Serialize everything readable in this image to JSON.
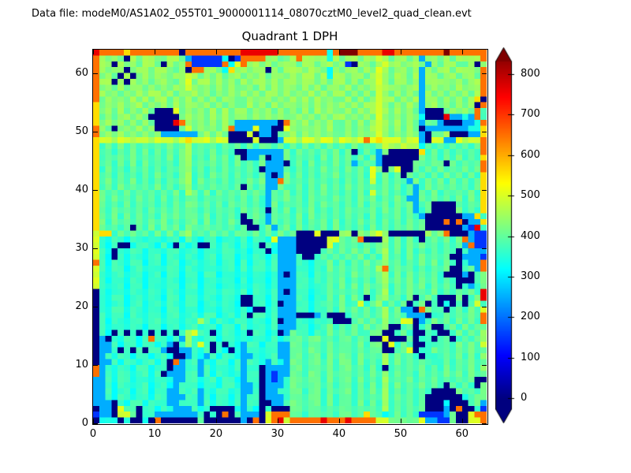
{
  "window": {
    "background": "#ffffff"
  },
  "header": {
    "data_file_label": "Data file: modeM0/AS1A02_055T01_9000001114_08070cztM0_level2_quad_clean.evt"
  },
  "chart_data": {
    "type": "heatmap",
    "title": "Quadrant 1 DPH",
    "xlabel": "",
    "ylabel": "",
    "xlim": [
      0,
      64
    ],
    "ylim": [
      0,
      64
    ],
    "x_ticks": [
      0,
      10,
      20,
      30,
      40,
      50,
      60
    ],
    "y_ticks": [
      0,
      10,
      20,
      30,
      40,
      50,
      60
    ],
    "grid": false,
    "colormap": "jet",
    "colorbar": {
      "position": "right",
      "ticks": [
        0,
        100,
        200,
        300,
        400,
        500,
        600,
        700,
        800
      ],
      "vmin": 0,
      "vmax": 850,
      "extend": "both",
      "under_color": "#00007f",
      "over_color": "#7f0000"
    },
    "value_map": {
      ".": 0,
      "1": 150,
      "2": 250,
      "3": 330,
      "4": 370,
      "5": 410,
      "6": 450,
      "7": 500,
      "8": 560,
      "9": 650,
      "r": 760,
      "R": 850
    },
    "row_order": "top_to_bottom_y63_to_y0",
    "rows": [
      "r9999899999999.999999999rrrrrr9999999939RRR9999rr99999999R999999",
      "96565.6566556652111113.19999665569666636566566765665626656566669",
      "966.6565665.656911111937966565666566566561.6656766566526566556.6669",
      "96566.566566556.996653866566.65666566536566565765665626566566659",
      "9565.6.5656656676565656656565665656656366566567656656266566566 59",
      "966.6.656566556756656565656656566566565665656676566562666656 5669",
      "9565656656565667656565655656565665656566565656766656625656565669",
      "9656565656656566656565656565665656565656656565765656526565656569",
      "9565656565665656565656655656656565656565565656766565626656 56568.",
      "8565656656565656656565655656565665656565656566765656526656 5656.9",
      "8565656565...75656565656656565656565656556565676565652...565659",
      "856566565.....5656565656656565655656565665656576565653...r22329",
      "8565656565...r9656565652222222.9656565655656567656565255 2...2239",
      "965.565656....5756565692227 22..7656565655656567656565.2222222338",
      "9565656565622222256565...7.22.55656565655656567656565 2.556...228",
      "877677677677767877767 7....7...277677677677679787776772.772276779",
      "8454545454545456454545454545545454545454545454576676635454545459",
      "84545454545454564545454..222222545454545 45.45425.....84545454549",
      "8454545454545456454545 45.225.22545454545 4545452......54545454548",
      "8454545454545456454545454545222.45454545 4524542.....55455.545459",
      "845454545454545645454545454.2225454545454545475.57..545454545459",
      "84545454545454564545454545452.2545454545454547454 5.5454545454548",
      "8454545454545456454545454545229545454545454547454542545454545458",
      "845454545454545645454545.5452254454545454545454545452454 54545458",
      "8545454545454546545454545454254545454545454547454545254545454548",
      "8545454545454545545454545454254545454545454545454542254545454548",
      "85454545454545455454545454542545454545454545 45454545245....54548",
      "854545454545454554545454 5454.545454545454545454545452 45....54548",
      "85454545454545455454545 4.454254545454545454545454545 42......228",
      "854545454545454554545454..54254545454545454545454545 45...9.9.228",
      "854545.545454545545454545..4524545454545454545454545 45......21r",
      "788454545454545645454545545454545...7...66.6567 6......6569...211",
      "7434434434434435434434434344372 22.....775459...645454.4545459211",
      "7434..3444343.434..434434 34.4322 2.....745454545645454545 45452911",
      "743.4344344344344344344 34344.322 2....45454545456454545 45454.4222",
      "743.4344344344344344344343443422 24..454545454546454545 4545..2221",
      "9434434434434434434434434344342224434454545454564545454545 4.4229",
      "74344344344344344344344343443422244344545454546945454545 45..4529",
      "743443443443443443443443 4344342.2443445454545456454545454...2.45",
      "7434434434434434434434434344342224434454545454564545454545 4...45",
      "74344344344344344344344343443422244344545454545645454545454.4245",
      ".4344344344344344344344 34344342.24434454545454564545454545 45454r",
      ".434434434434434434434 43..44342224434454 5454.4564545.454...5.45r",
      ".434434434434434434434 43..4434.224434454 54474564545.45.4.3.4.47",
      ".43443443443443443443443 43..342224434454545454564522.9544.454547",
      ".434434434434434434434434.4434222...24...45454564542 22.445454549",
      ".4344344344344344643443 4434434.22443444...4545464577.24545454549",
      ".43443443443443443443443434434222443445454545456..45.45..4545455",
      ".43.4.4.4.4.4.46744.34434.4434.2544344545454455..454..44..454546",
      ".2.434434944342643443443434434345545545455454..7...5.44.45.45456",
      ".224344344342.46474.4.43244344225545545455454 55.7454..4445454547",
      ".224.4.4.442..22434.43.3244344225545545455454 55..457.44545454545",
      ".243443443443..24324344322434422554554545545454645454.4445454546",
      ".22434434434.92442434434244324325545545455454546454545444 5454545",
      "924344344344.2244243443 4244.222255455454 5545454.4545454545454546",
      "92434434434.222442434434244.21225545545455454546454545454545 4545",
      "2243443443443224434434 43244.2124554554545545454645454545454545..",
      "224344344344324443443443224.222455455454554545464545454 54.5454.5",
      "2243443443442244424344 34224.224455455454554545464545454....54545",
      "22434434434422244243443 4244.222455455454554545 46454545......3455",
      "222.43443444224442434434244..22455455454554545 46454545...3...452",
      ".22.744.44343222434....3243.4...5545545455454546454545...2.9..41",
      "122.775.4422222224.4.9.4222.7999554554545545854345454111125..799",
      ".333.3..3.9......5......2.9.79r799999r999r99997755555722115..779"
    ]
  }
}
